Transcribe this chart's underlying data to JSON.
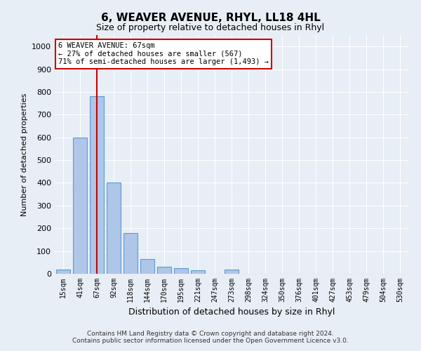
{
  "title": "6, WEAVER AVENUE, RHYL, LL18 4HL",
  "subtitle": "Size of property relative to detached houses in Rhyl",
  "xlabel": "Distribution of detached houses by size in Rhyl",
  "ylabel": "Number of detached properties",
  "categories": [
    "15sqm",
    "41sqm",
    "67sqm",
    "92sqm",
    "118sqm",
    "144sqm",
    "170sqm",
    "195sqm",
    "221sqm",
    "247sqm",
    "273sqm",
    "298sqm",
    "324sqm",
    "350sqm",
    "376sqm",
    "401sqm",
    "427sqm",
    "453sqm",
    "479sqm",
    "504sqm",
    "530sqm"
  ],
  "values": [
    20,
    600,
    780,
    400,
    180,
    65,
    30,
    25,
    15,
    0,
    20,
    0,
    0,
    0,
    0,
    0,
    0,
    0,
    0,
    0,
    0
  ],
  "bar_color": "#aec6e8",
  "bar_edge_color": "#5b9bd5",
  "vline_x": 2,
  "vline_color": "#cc0000",
  "annotation_text": "6 WEAVER AVENUE: 67sqm\n← 27% of detached houses are smaller (567)\n71% of semi-detached houses are larger (1,493) →",
  "annotation_box_color": "#ffffff",
  "annotation_box_edge_color": "#cc0000",
  "bg_color": "#e8eef5",
  "plot_bg_color": "#e8eef5",
  "footer": "Contains HM Land Registry data © Crown copyright and database right 2024.\nContains public sector information licensed under the Open Government Licence v3.0.",
  "ylim": [
    0,
    1050
  ],
  "yticks": [
    0,
    100,
    200,
    300,
    400,
    500,
    600,
    700,
    800,
    900,
    1000
  ],
  "title_fontsize": 11,
  "subtitle_fontsize": 9,
  "ylabel_fontsize": 8,
  "xlabel_fontsize": 9,
  "tick_fontsize": 7,
  "footer_fontsize": 6.5
}
